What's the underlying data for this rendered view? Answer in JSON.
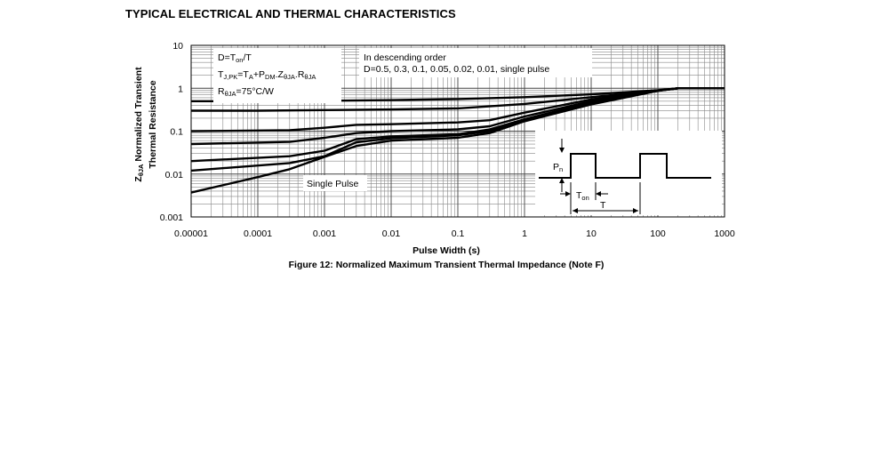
{
  "section_title": "TYPICAL ELECTRICAL AND THERMAL CHARACTERISTICS",
  "chart_data": {
    "type": "line",
    "x_scale": "log",
    "y_scale": "log",
    "title": "Figure 12: Normalized Maximum Transient Thermal Impedance (Note F)",
    "xlabel": "Pulse Width (s)",
    "ylabel_line1": "ZθJA Normalized Transient",
    "ylabel_line2": "Thermal Resistance",
    "xlim": [
      1e-05,
      1000
    ],
    "ylim": [
      0.001,
      10
    ],
    "x_tick_labels": [
      "0.00001",
      "0.0001",
      "0.001",
      "0.01",
      "0.1",
      "1",
      "10",
      "100",
      "1000"
    ],
    "y_tick_labels": [
      "10",
      "1",
      "0.1",
      "0.01",
      "0.001"
    ],
    "grid": true,
    "annotations": {
      "duty_formula": "D=Ton/T",
      "tj_formula": "TJ,PK=TA+PDM.ZθJA.RθJA",
      "rtheta_value": "RθJA=75°C/W",
      "order_line1": "In descending order",
      "order_line2": "D=0.5, 0.3, 0.1, 0.05, 0.02, 0.01, single pulse",
      "single_pulse_label": "Single Pulse",
      "pulse_power_label": "Pn",
      "pulse_ton_label": "Ton",
      "pulse_period_label": "T"
    },
    "series": [
      {
        "name": "D=0.5",
        "points": [
          [
            1e-05,
            0.5
          ],
          [
            0.0001,
            0.5
          ],
          [
            0.001,
            0.51
          ],
          [
            0.01,
            0.53
          ],
          [
            0.1,
            0.56
          ],
          [
            1,
            0.62
          ],
          [
            10,
            0.72
          ],
          [
            100,
            0.9
          ],
          [
            200,
            1.0
          ],
          [
            1000,
            1.0
          ]
        ]
      },
      {
        "name": "D=0.3",
        "points": [
          [
            1e-05,
            0.3
          ],
          [
            0.0001,
            0.3
          ],
          [
            0.001,
            0.31
          ],
          [
            0.01,
            0.32
          ],
          [
            0.1,
            0.34
          ],
          [
            1,
            0.43
          ],
          [
            10,
            0.62
          ],
          [
            100,
            0.88
          ],
          [
            200,
            1.0
          ],
          [
            1000,
            1.0
          ]
        ]
      },
      {
        "name": "D=0.1",
        "points": [
          [
            1e-05,
            0.1
          ],
          [
            0.0003,
            0.105
          ],
          [
            0.001,
            0.12
          ],
          [
            0.003,
            0.14
          ],
          [
            0.01,
            0.145
          ],
          [
            0.1,
            0.16
          ],
          [
            0.3,
            0.18
          ],
          [
            1,
            0.27
          ],
          [
            10,
            0.55
          ],
          [
            100,
            0.88
          ],
          [
            200,
            1.0
          ],
          [
            1000,
            1.0
          ]
        ]
      },
      {
        "name": "D=0.05",
        "points": [
          [
            1e-05,
            0.05
          ],
          [
            0.0003,
            0.056
          ],
          [
            0.001,
            0.07
          ],
          [
            0.003,
            0.09
          ],
          [
            0.01,
            0.1
          ],
          [
            0.1,
            0.11
          ],
          [
            0.3,
            0.13
          ],
          [
            1,
            0.22
          ],
          [
            10,
            0.5
          ],
          [
            100,
            0.88
          ],
          [
            200,
            1.0
          ],
          [
            1000,
            1.0
          ]
        ]
      },
      {
        "name": "D=0.02",
        "points": [
          [
            1e-05,
            0.02
          ],
          [
            0.0003,
            0.026
          ],
          [
            0.001,
            0.035
          ],
          [
            0.003,
            0.065
          ],
          [
            0.01,
            0.075
          ],
          [
            0.1,
            0.085
          ],
          [
            0.3,
            0.11
          ],
          [
            1,
            0.19
          ],
          [
            10,
            0.47
          ],
          [
            100,
            0.88
          ],
          [
            200,
            1.0
          ],
          [
            1000,
            1.0
          ]
        ]
      },
      {
        "name": "D=0.01",
        "points": [
          [
            1e-05,
            0.012
          ],
          [
            0.0003,
            0.018
          ],
          [
            0.001,
            0.026
          ],
          [
            0.003,
            0.055
          ],
          [
            0.01,
            0.068
          ],
          [
            0.1,
            0.08
          ],
          [
            0.3,
            0.1
          ],
          [
            1,
            0.18
          ],
          [
            10,
            0.45
          ],
          [
            100,
            0.88
          ],
          [
            200,
            1.0
          ],
          [
            1000,
            1.0
          ]
        ]
      },
      {
        "name": "single pulse",
        "points": [
          [
            1e-05,
            0.0037
          ],
          [
            0.0001,
            0.0085
          ],
          [
            0.0003,
            0.013
          ],
          [
            0.001,
            0.025
          ],
          [
            0.003,
            0.045
          ],
          [
            0.01,
            0.06
          ],
          [
            0.1,
            0.07
          ],
          [
            0.3,
            0.09
          ],
          [
            1,
            0.17
          ],
          [
            10,
            0.42
          ],
          [
            100,
            0.87
          ],
          [
            200,
            1.0
          ],
          [
            1000,
            1.0
          ]
        ]
      }
    ]
  }
}
